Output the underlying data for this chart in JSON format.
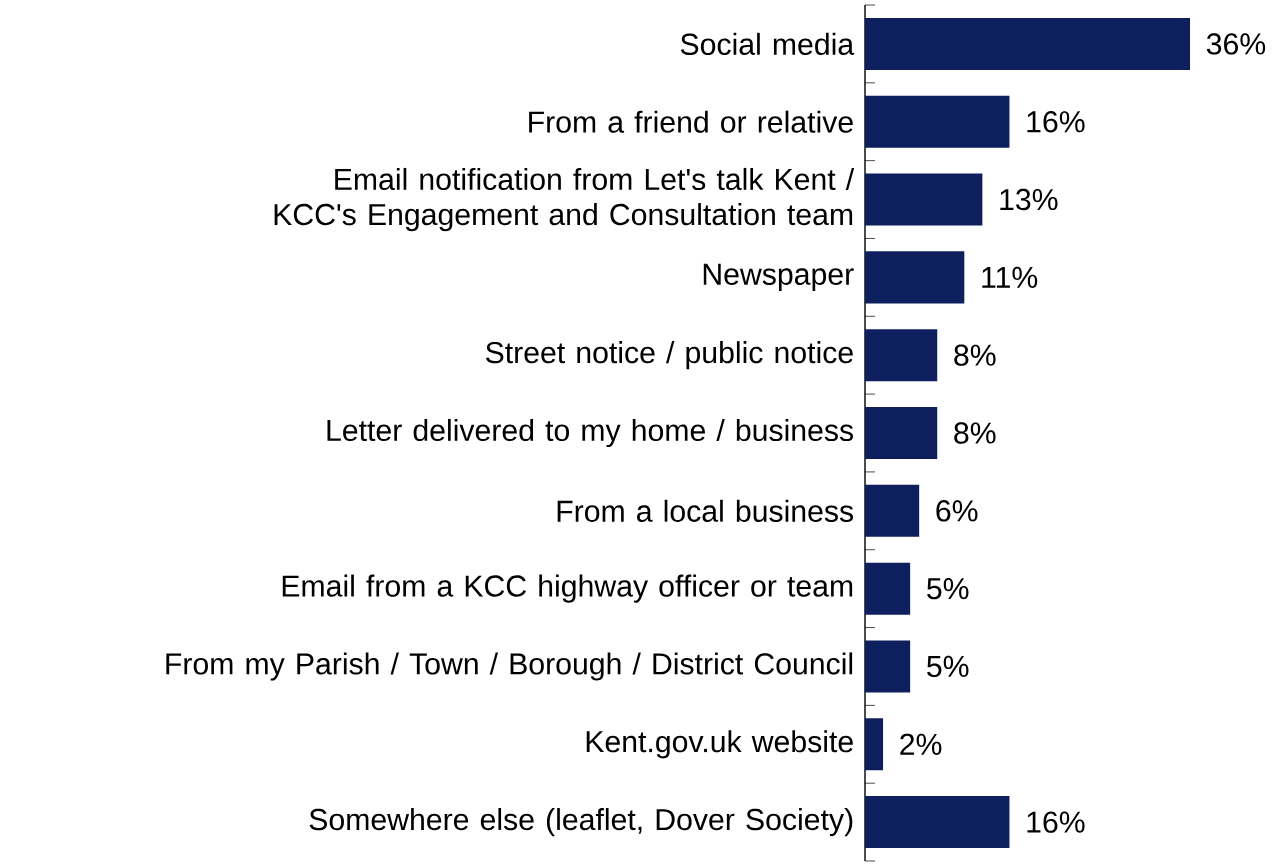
{
  "chart_data": {
    "type": "bar",
    "orientation": "horizontal",
    "color": "#0d1f5c",
    "categories": [
      "Social media",
      "From a friend or relative",
      "Email notification from Let's talk Kent / KCC's Engagement and Consultation team",
      "Newspaper",
      "Street notice / public notice",
      "Letter delivered to my home / business",
      "From a local business",
      "Email from a KCC highway officer or team",
      "From my Parish / Town / Borough / District Council",
      "Kent.gov.uk website",
      "Somewhere else (leaflet, Dover Society)"
    ],
    "values": [
      36,
      16,
      13,
      11,
      8,
      8,
      6,
      5,
      5,
      2,
      16
    ],
    "value_labels": [
      "36%",
      "16%",
      "13%",
      "11%",
      "8%",
      "8%",
      "6%",
      "5%",
      "5%",
      "2%",
      "16%"
    ]
  }
}
